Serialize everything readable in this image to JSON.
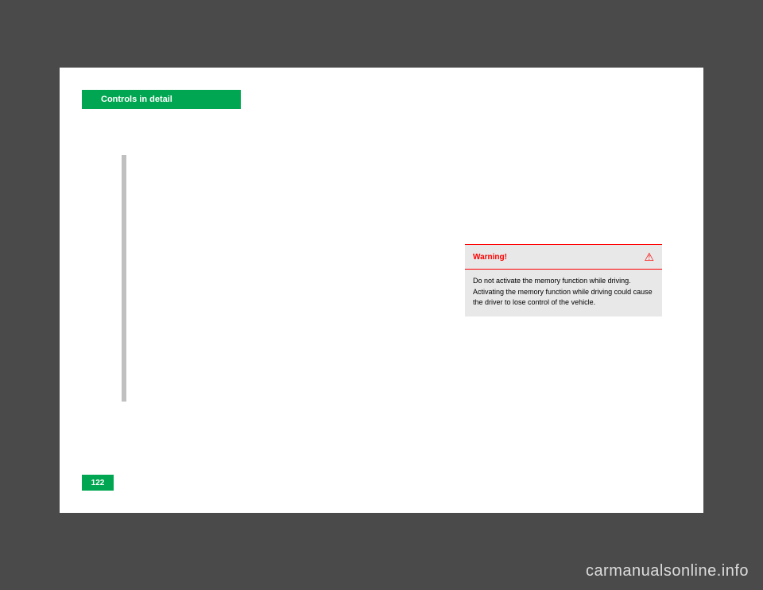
{
  "header": {
    "title": "Controls in detail"
  },
  "warning_box": {
    "title": "Warning!",
    "icon": "⚠",
    "body": "Do not activate the memory function while driving. Activating the memory function while driving could cause the driver to lose control of the vehicle.",
    "title_color": "#ff0000",
    "border_color": "#ff0000",
    "background_color": "#e8e8e8"
  },
  "page_number": "122",
  "watermark": "carmanualsonline.info",
  "colors": {
    "accent_green": "#00a651",
    "page_background": "#ffffff",
    "body_background": "#4a4a4a",
    "vertical_bar": "#c0c0c0",
    "watermark_color": "#dcdcdc"
  }
}
